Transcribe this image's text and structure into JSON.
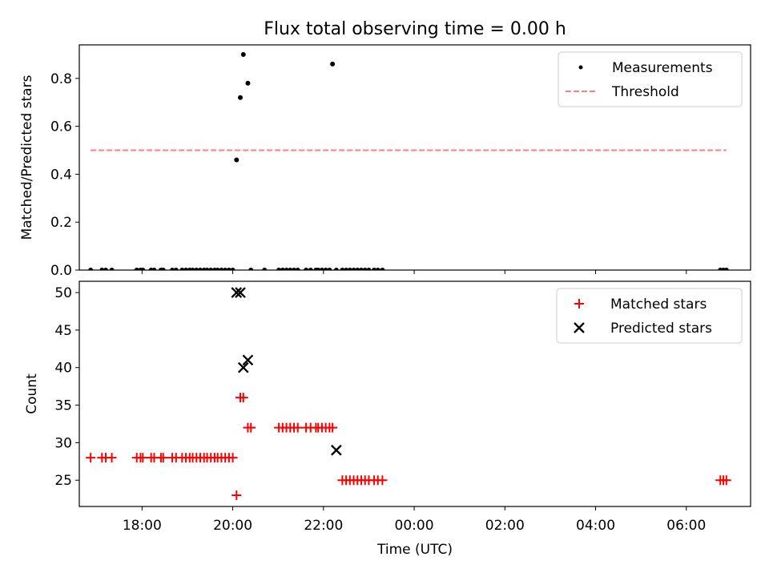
{
  "figure": {
    "title": "Flux total observing time = 0.00 h"
  },
  "chart_data": [
    {
      "type": "scatter",
      "title": "Flux total observing time = 0.00 h",
      "xlabel": "",
      "ylabel": "Matched/Predicted stars",
      "xlim": [
        "16:37",
        "07:25"
      ],
      "ylim": [
        0.0,
        0.94
      ],
      "yticks": [
        0.0,
        0.2,
        0.4,
        0.6,
        0.8
      ],
      "legend_position": "top-right",
      "series": [
        {
          "name": "Measurements",
          "kind": "scatter",
          "color": "#000000",
          "x": [
            "16:52",
            "17:07",
            "17:12",
            "17:20",
            "17:53",
            "17:58",
            "18:01",
            "18:12",
            "18:16",
            "18:25",
            "18:28",
            "18:40",
            "18:45",
            "18:53",
            "18:58",
            "19:03",
            "19:07",
            "19:12",
            "19:17",
            "19:22",
            "19:26",
            "19:31",
            "19:36",
            "19:40",
            "19:45",
            "19:50",
            "19:55",
            "20:00",
            "20:05",
            "20:10",
            "20:14",
            "20:20",
            "20:24",
            "20:42",
            "21:01",
            "21:06",
            "21:11",
            "21:16",
            "21:21",
            "21:26",
            "21:37",
            "21:43",
            "21:50",
            "21:53",
            "21:58",
            "22:03",
            "22:08",
            "22:12",
            "22:17",
            "22:25",
            "22:30",
            "22:35",
            "22:40",
            "22:45",
            "22:50",
            "22:55",
            "23:00",
            "23:07",
            "23:12",
            "23:18",
            "06:45",
            "06:49",
            "06:53"
          ],
          "y": [
            0,
            0,
            0,
            0,
            0,
            0,
            0,
            0,
            0,
            0,
            0,
            0,
            0,
            0,
            0,
            0,
            0,
            0,
            0,
            0,
            0,
            0,
            0,
            0,
            0,
            0,
            0,
            0,
            0.46,
            0.72,
            0.9,
            0.78,
            0,
            0,
            0,
            0,
            0,
            0,
            0,
            0,
            0,
            0,
            0,
            0,
            0,
            0,
            0,
            0.86,
            0,
            0,
            0,
            0,
            0,
            0,
            0,
            0,
            0,
            0,
            0,
            0,
            0,
            0,
            0
          ]
        },
        {
          "name": "Threshold",
          "kind": "line",
          "style": "dashed",
          "color": "#ff7f7f",
          "x": [
            "16:52",
            "06:53"
          ],
          "y": [
            0.5,
            0.5
          ]
        }
      ]
    },
    {
      "type": "scatter",
      "title": "",
      "xlabel": "Time (UTC)",
      "ylabel": "Count",
      "xlim": [
        "16:37",
        "07:25"
      ],
      "ylim": [
        21.5,
        51.5
      ],
      "yticks": [
        25,
        30,
        35,
        40,
        45,
        50
      ],
      "xticks": [
        "18:00",
        "20:00",
        "22:00",
        "00:00",
        "02:00",
        "04:00",
        "06:00"
      ],
      "legend_position": "top-right",
      "series": [
        {
          "name": "Matched stars",
          "kind": "plus",
          "color": "#ff0000",
          "x": [
            "16:52",
            "17:07",
            "17:12",
            "17:20",
            "17:53",
            "17:58",
            "18:01",
            "18:12",
            "18:16",
            "18:25",
            "18:28",
            "18:40",
            "18:45",
            "18:53",
            "18:58",
            "19:03",
            "19:07",
            "19:12",
            "19:17",
            "19:22",
            "19:26",
            "19:31",
            "19:36",
            "19:40",
            "19:45",
            "19:50",
            "19:55",
            "20:00",
            "20:05",
            "20:10",
            "20:14",
            "20:20",
            "20:24",
            "21:01",
            "21:06",
            "21:11",
            "21:16",
            "21:21",
            "21:26",
            "21:37",
            "21:43",
            "21:50",
            "21:53",
            "21:58",
            "22:03",
            "22:08",
            "22:12",
            "22:25",
            "22:30",
            "22:35",
            "22:40",
            "22:45",
            "22:50",
            "22:55",
            "23:00",
            "23:07",
            "23:12",
            "23:18",
            "06:45",
            "06:49",
            "06:53"
          ],
          "y": [
            28,
            28,
            28,
            28,
            28,
            28,
            28,
            28,
            28,
            28,
            28,
            28,
            28,
            28,
            28,
            28,
            28,
            28,
            28,
            28,
            28,
            28,
            28,
            28,
            28,
            28,
            28,
            28,
            23,
            36,
            36,
            32,
            32,
            32,
            32,
            32,
            32,
            32,
            32,
            32,
            32,
            32,
            32,
            32,
            32,
            32,
            32,
            25,
            25,
            25,
            25,
            25,
            25,
            25,
            25,
            25,
            25,
            25,
            25,
            25,
            25
          ]
        },
        {
          "name": "Predicted stars",
          "kind": "x",
          "color": "#000000",
          "x": [
            "20:05",
            "20:10",
            "20:14",
            "20:20",
            "22:17"
          ],
          "y": [
            50,
            50,
            40,
            41,
            29
          ]
        }
      ]
    }
  ]
}
